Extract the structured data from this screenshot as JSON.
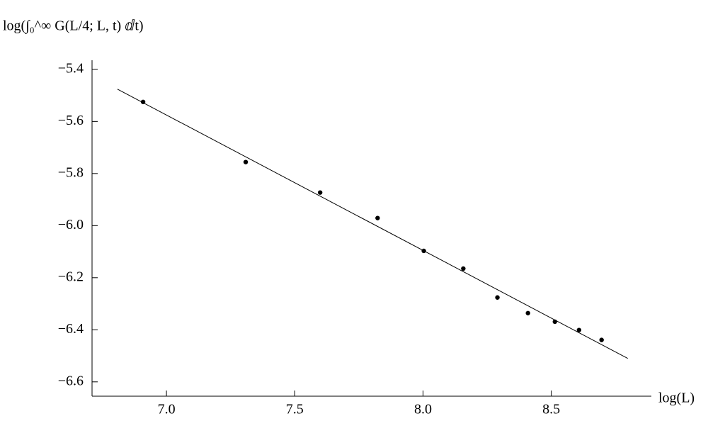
{
  "chart_data": {
    "type": "scatter",
    "y_label": "log(∫₀^∞ G(L/4; L, t) ⅆt)",
    "x_label": "log(L)",
    "x": [
      6.909,
      7.309,
      7.599,
      7.823,
      8.003,
      8.157,
      8.29,
      8.409,
      8.514,
      8.608,
      8.696
    ],
    "values": [
      -5.525,
      -5.756,
      -5.873,
      -5.971,
      -6.097,
      -6.165,
      -6.276,
      -6.336,
      -6.369,
      -6.401,
      -6.439
    ],
    "color": "#000000",
    "fit": {
      "x": [
        6.809,
        8.798
      ],
      "values": [
        -5.476,
        -6.51
      ],
      "color": "#000000"
    },
    "xlim": [
      6.71,
      8.89
    ],
    "ylim": [
      -6.655,
      -5.365
    ],
    "xticks": [
      {
        "value": 7,
        "label": "7.0"
      },
      7.5,
      {
        "value": 8,
        "label": "8.0"
      },
      8.5
    ],
    "yticks": [
      {
        "value": -5.4,
        "label": "−5.4"
      },
      {
        "value": -5.6,
        "label": "−5.6"
      },
      {
        "value": -5.8,
        "label": "−5.8"
      },
      {
        "value": -6.0,
        "label": "−6.0"
      },
      {
        "value": -6.2,
        "label": "−6.2"
      },
      {
        "value": -6.4,
        "label": "−6.4"
      },
      {
        "value": -6.6,
        "label": "−6.6"
      }
    ]
  }
}
